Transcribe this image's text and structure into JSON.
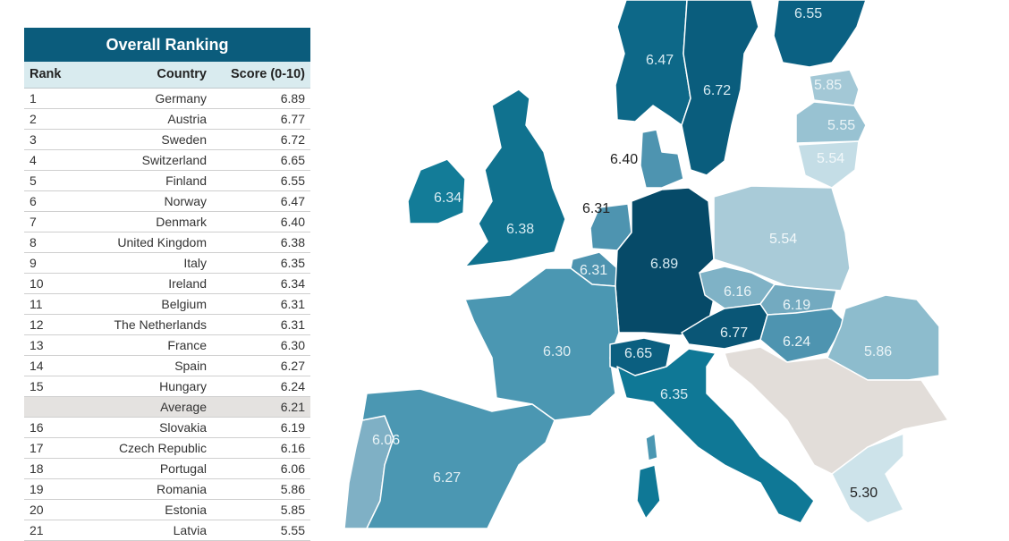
{
  "table": {
    "title": "Overall Ranking",
    "columns": [
      "Rank",
      "Country",
      "Score (0-10)"
    ],
    "rows": [
      {
        "rank": "1",
        "country": "Germany",
        "score": "6.89"
      },
      {
        "rank": "2",
        "country": "Austria",
        "score": "6.77"
      },
      {
        "rank": "3",
        "country": "Sweden",
        "score": "6.72"
      },
      {
        "rank": "4",
        "country": "Switzerland",
        "score": "6.65"
      },
      {
        "rank": "5",
        "country": "Finland",
        "score": "6.55"
      },
      {
        "rank": "6",
        "country": "Norway",
        "score": "6.47"
      },
      {
        "rank": "7",
        "country": "Denmark",
        "score": "6.40"
      },
      {
        "rank": "8",
        "country": "United Kingdom",
        "score": "6.38"
      },
      {
        "rank": "9",
        "country": "Italy",
        "score": "6.35"
      },
      {
        "rank": "10",
        "country": "Ireland",
        "score": "6.34"
      },
      {
        "rank": "11",
        "country": "Belgium",
        "score": "6.31"
      },
      {
        "rank": "12",
        "country": "The Netherlands",
        "score": "6.31"
      },
      {
        "rank": "13",
        "country": "France",
        "score": "6.30"
      },
      {
        "rank": "14",
        "country": "Spain",
        "score": "6.27"
      },
      {
        "rank": "15",
        "country": "Hungary",
        "score": "6.24"
      },
      {
        "rank": "",
        "country": "Average",
        "score": "6.21"
      },
      {
        "rank": "16",
        "country": "Slovakia",
        "score": "6.19"
      },
      {
        "rank": "17",
        "country": "Czech Republic",
        "score": "6.16"
      },
      {
        "rank": "18",
        "country": "Portugal",
        "score": "6.06"
      },
      {
        "rank": "19",
        "country": "Romania",
        "score": "5.86"
      },
      {
        "rank": "20",
        "country": "Estonia",
        "score": "5.85"
      },
      {
        "rank": "21",
        "country": "Latvia",
        "score": "5.55"
      }
    ]
  },
  "map_labels": {
    "finland": "6.55",
    "norway": "6.47",
    "sweden": "6.72",
    "estonia": "5.85",
    "latvia": "5.55",
    "lithuania": "5.54",
    "denmark": "6.40",
    "ireland": "6.34",
    "uk": "6.38",
    "netherlands": "6.31",
    "belgium": "6.31",
    "germany": "6.89",
    "poland": "5.54",
    "czech": "6.16",
    "slovakia": "6.19",
    "austria": "6.77",
    "hungary": "6.24",
    "romania": "5.86",
    "france": "6.30",
    "switzerland": "6.65",
    "italy": "6.35",
    "portugal": "6.06",
    "spain": "6.27",
    "greece": "5.30"
  },
  "colors": {
    "header": "#0b5c7c",
    "subheader": "#d9ebef",
    "average_row": "#e4e2e0",
    "darkest": "#0a5676",
    "dark": "#0d6888",
    "mid_dark": "#137c98",
    "mid": "#4b97b2",
    "light": "#8dbccd",
    "lighter": "#a8ccd9",
    "lightest": "#cde3ea",
    "no_data": "#e2ddd9"
  },
  "chart_data": {
    "type": "table",
    "title": "Overall Ranking",
    "columns": [
      "Rank",
      "Country",
      "Score (0-10)"
    ],
    "categories": [
      "Germany",
      "Austria",
      "Sweden",
      "Switzerland",
      "Finland",
      "Norway",
      "Denmark",
      "United Kingdom",
      "Italy",
      "Ireland",
      "Belgium",
      "The Netherlands",
      "France",
      "Spain",
      "Hungary",
      "Average",
      "Slovakia",
      "Czech Republic",
      "Portugal",
      "Romania",
      "Estonia",
      "Latvia"
    ],
    "values": [
      6.89,
      6.77,
      6.72,
      6.65,
      6.55,
      6.47,
      6.4,
      6.38,
      6.35,
      6.34,
      6.31,
      6.31,
      6.3,
      6.27,
      6.24,
      6.21,
      6.19,
      6.16,
      6.06,
      5.86,
      5.85,
      5.55
    ],
    "map_values": {
      "Poland": 5.54,
      "Lithuania": 5.54,
      "Greece": 5.3
    },
    "ylabel": "Score (0-10)"
  }
}
